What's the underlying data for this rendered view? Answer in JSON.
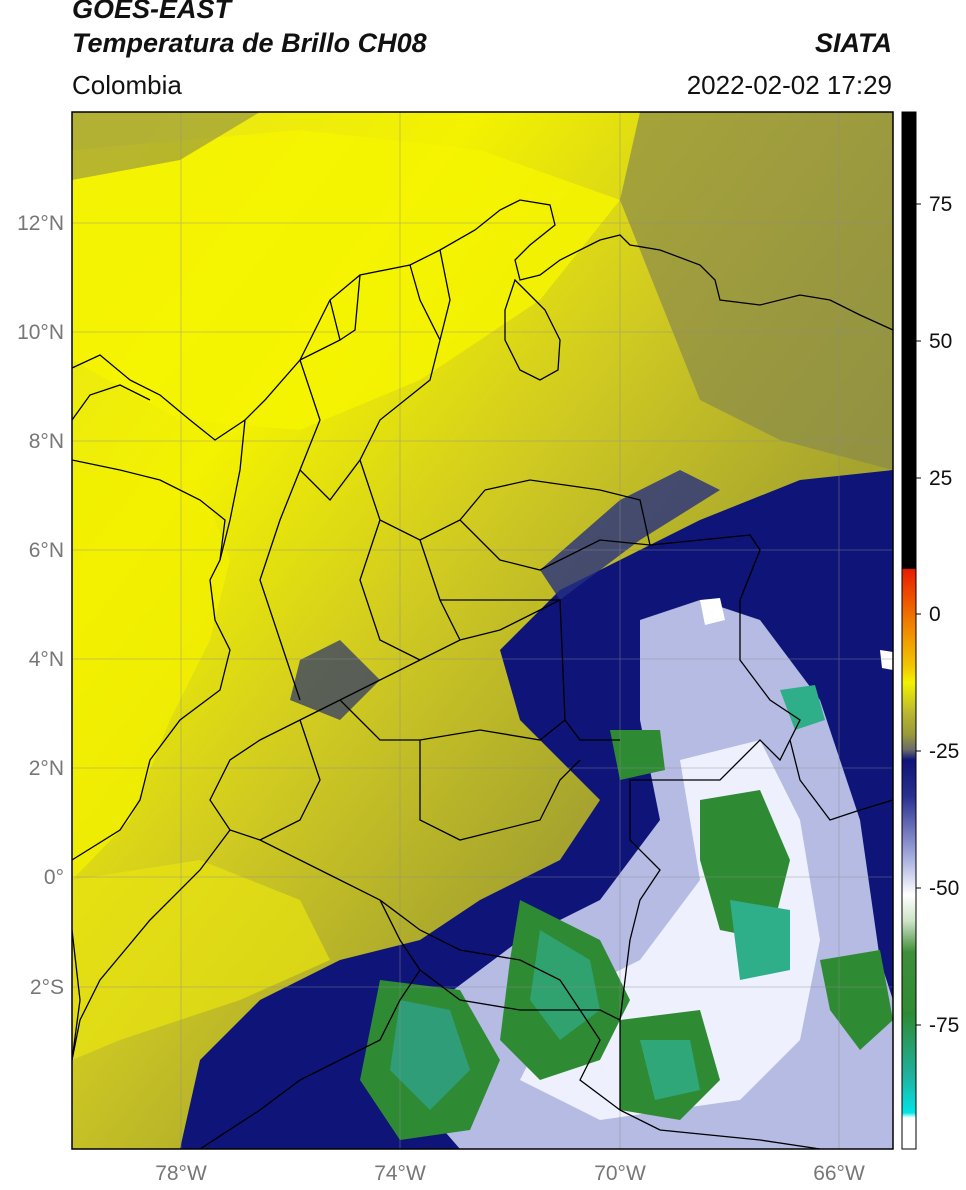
{
  "header": {
    "satellite": "GOES-EAST",
    "product": "Temperatura de Brillo CH08",
    "region": "Colombia",
    "source": "SIATA",
    "datetime": "2022-02-02 17:29"
  },
  "map": {
    "lat_labels": [
      "12°N",
      "10°N",
      "8°N",
      "6°N",
      "4°N",
      "2°N",
      "0°",
      "2°S"
    ],
    "lon_labels": [
      "78°W",
      "74°W",
      "70°W",
      "66°W"
    ]
  },
  "colorbar": {
    "tick_labels": [
      "75",
      "50",
      "25",
      "0",
      "-25",
      "-50",
      "-75"
    ],
    "colors": {
      "black": "#000000",
      "red": "#e81d00",
      "orange": "#f49a00",
      "yellow": "#f2f200",
      "olive": "#a4a430",
      "gray": "#7a7a6a",
      "navy": "#0e1478",
      "light_blue": "#a8b0e0",
      "white": "#ffffff",
      "green": "#2e8b34",
      "teal": "#20b2a0",
      "cyan": "#00e5e5"
    }
  }
}
